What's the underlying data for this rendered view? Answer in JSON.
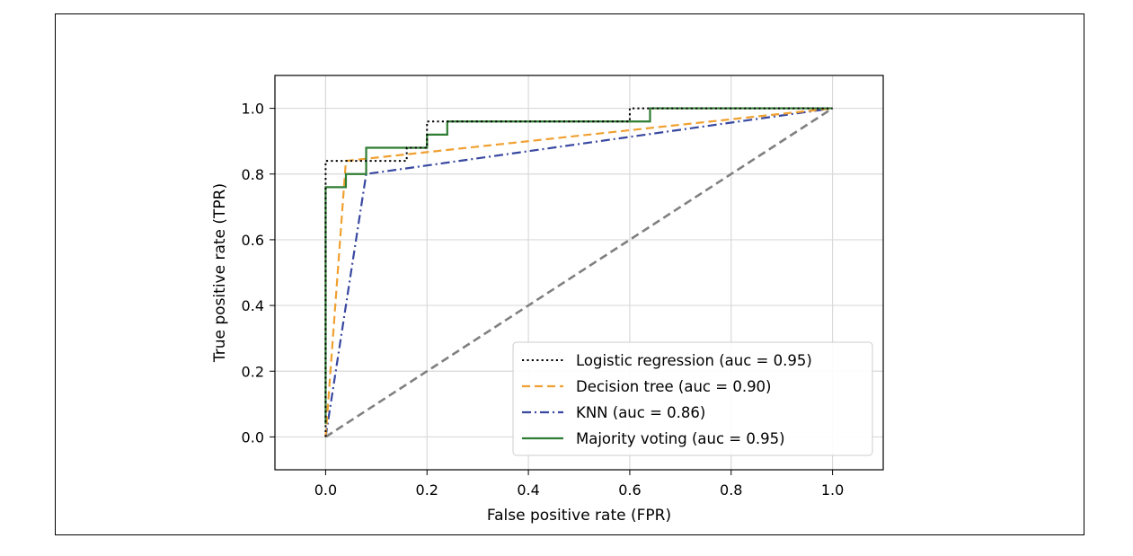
{
  "chart_data": {
    "type": "line",
    "title": "",
    "xlabel": "False positive rate (FPR)",
    "ylabel": "True positive rate (TPR)",
    "xlim": [
      -0.1,
      1.1
    ],
    "ylim": [
      -0.1,
      1.1
    ],
    "xticks": [
      0.0,
      0.2,
      0.4,
      0.6,
      0.8,
      1.0
    ],
    "yticks": [
      0.0,
      0.2,
      0.4,
      0.6,
      0.8,
      1.0
    ],
    "xtick_labels": [
      "0.0",
      "0.2",
      "0.4",
      "0.6",
      "0.8",
      "1.0"
    ],
    "ytick_labels": [
      "0.0",
      "0.2",
      "0.4",
      "0.6",
      "0.8",
      "1.0"
    ],
    "grid": true,
    "legend_position": "lower right",
    "series": [
      {
        "name": "Logistic regression (auc = 0.95)",
        "style": "dotted",
        "color": "#000000",
        "x": [
          0.0,
          0.0,
          0.0,
          0.16,
          0.16,
          0.2,
          0.2,
          0.24,
          0.24,
          0.6,
          0.6,
          0.64,
          0.64,
          1.0
        ],
        "y": [
          0.0,
          0.8,
          0.84,
          0.84,
          0.88,
          0.88,
          0.96,
          0.96,
          0.96,
          0.96,
          1.0,
          1.0,
          1.0,
          1.0
        ]
      },
      {
        "name": "Decision tree (auc = 0.90)",
        "style": "dashed",
        "color": "#f0a030",
        "x": [
          0.0,
          0.04,
          1.0
        ],
        "y": [
          0.0,
          0.84,
          1.0
        ]
      },
      {
        "name": "KNN (auc = 0.86)",
        "style": "dashdot",
        "color": "#3848a0",
        "x": [
          0.0,
          0.08,
          1.0
        ],
        "y": [
          0.0,
          0.8,
          1.0
        ]
      },
      {
        "name": "Majority voting (auc = 0.95)",
        "style": "solid",
        "color": "#2f7d32",
        "x": [
          0.0,
          0.0,
          0.04,
          0.04,
          0.08,
          0.08,
          0.2,
          0.2,
          0.24,
          0.24,
          0.64,
          0.64,
          1.0
        ],
        "y": [
          0.04,
          0.76,
          0.76,
          0.8,
          0.8,
          0.88,
          0.88,
          0.92,
          0.92,
          0.96,
          0.96,
          1.0,
          1.0
        ]
      }
    ],
    "reference_line": {
      "style": "dashed",
      "color": "#808080",
      "x": [
        0.0,
        1.0
      ],
      "y": [
        0.0,
        1.0
      ]
    }
  }
}
